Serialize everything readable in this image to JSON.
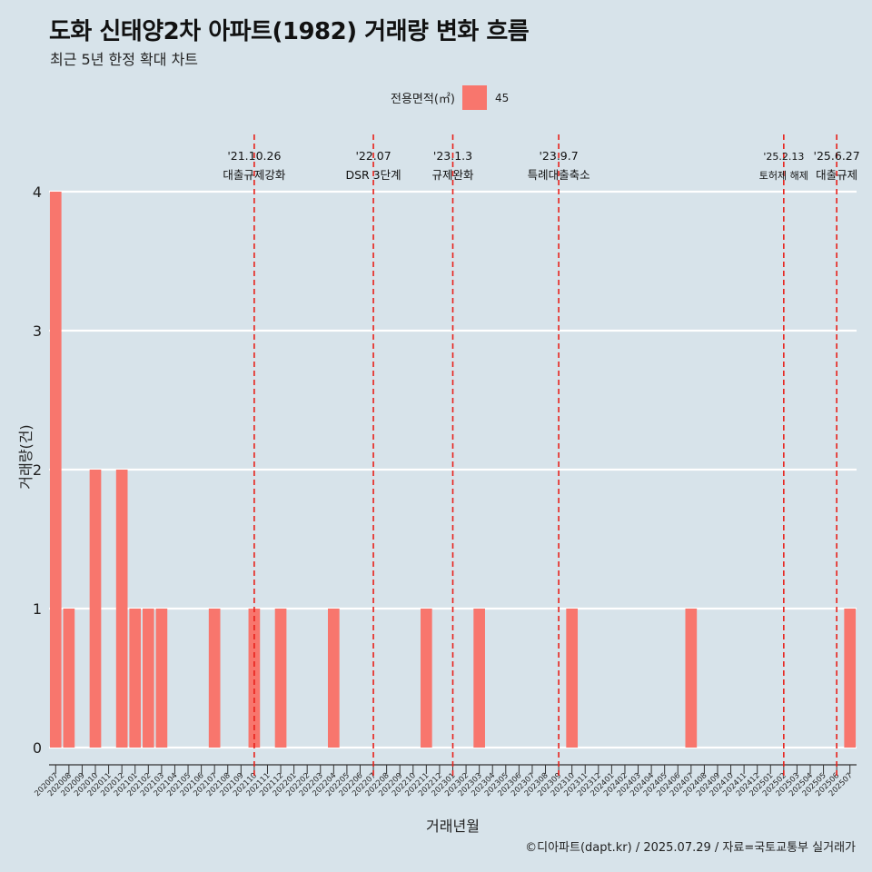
{
  "title": "도화 신태양2차 아파트(1982) 거래량 변화 흐름",
  "subtitle": "최근 5년 한정 확대 차트",
  "legend": {
    "title": "전용면적(㎡)",
    "label": "45"
  },
  "caption": "©디아파트(dapt.kr) / 2025.07.29 / 자료=국토교통부 실거래가",
  "colors": {
    "bar": "#f8766d",
    "background": "#d7e3ea",
    "grid": "#ffffff",
    "event_line": "#e8201a"
  },
  "chart_data": {
    "type": "bar",
    "xlabel": "거래년월",
    "ylabel": "거래량(건)",
    "ylim": [
      0,
      4
    ],
    "yticks": [
      0,
      1,
      2,
      3,
      4
    ],
    "grid": true,
    "legend_position": "top",
    "categories": [
      "202007",
      "202008",
      "202009",
      "202010",
      "202011",
      "202012",
      "202101",
      "202102",
      "202103",
      "202104",
      "202105",
      "202106",
      "202107",
      "202108",
      "202109",
      "202110",
      "202111",
      "202112",
      "202201",
      "202202",
      "202203",
      "202204",
      "202205",
      "202206",
      "202207",
      "202208",
      "202209",
      "202210",
      "202211",
      "202212",
      "202301",
      "202302",
      "202303",
      "202304",
      "202305",
      "202306",
      "202307",
      "202308",
      "202309",
      "202310",
      "202311",
      "202312",
      "202401",
      "202402",
      "202403",
      "202404",
      "202405",
      "202406",
      "202407",
      "202408",
      "202409",
      "202410",
      "202411",
      "202412",
      "202501",
      "202502",
      "202503",
      "202504",
      "202505",
      "202506",
      "202507"
    ],
    "series": [
      {
        "name": "45",
        "values": [
          4,
          1,
          0,
          2,
          0,
          2,
          1,
          1,
          1,
          0,
          0,
          0,
          1,
          0,
          0,
          1,
          0,
          1,
          0,
          0,
          0,
          1,
          0,
          0,
          0,
          0,
          0,
          0,
          1,
          0,
          0,
          0,
          1,
          0,
          0,
          0,
          0,
          0,
          0,
          1,
          0,
          0,
          0,
          0,
          0,
          0,
          0,
          0,
          1,
          0,
          0,
          0,
          0,
          0,
          0,
          0,
          0,
          0,
          0,
          0,
          1
        ]
      }
    ],
    "events": [
      {
        "date": "'21.10.26",
        "label": "대출규제강화",
        "position": 15.5
      },
      {
        "date": "'22.07",
        "label": "DSR 3단계",
        "position": 24.5
      },
      {
        "date": "'23.1.3",
        "label": "규제완화",
        "position": 30.5
      },
      {
        "date": "'23.9.7",
        "label": "특례대출축소",
        "position": 38.5
      },
      {
        "date": "'25.2.13",
        "label": "토허제 해제",
        "position": 55.5
      },
      {
        "date": "'25.6.27",
        "label": "대출규제",
        "position": 59.5
      }
    ]
  }
}
